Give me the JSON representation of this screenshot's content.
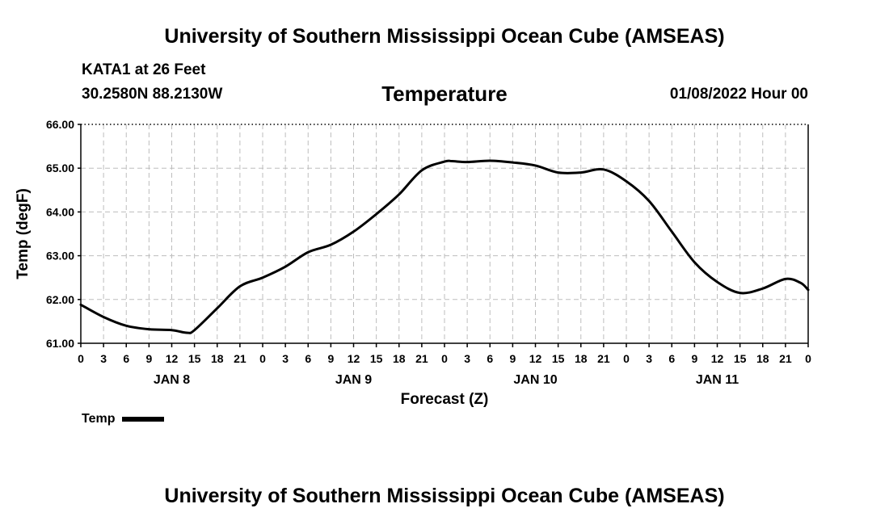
{
  "header": {
    "title": "University of Southern Mississippi Ocean Cube (AMSEAS)",
    "station": "KATA1 at 26 Feet",
    "coords": "30.2580N  88.2130W",
    "datetime": "01/08/2022 Hour 00"
  },
  "footer": {
    "title": "University of Southern Mississippi Ocean Cube (AMSEAS)"
  },
  "legend": {
    "label": "Temp"
  },
  "chart_data": {
    "type": "line",
    "title": "Temperature",
    "xlabel": "Forecast (Z)",
    "ylabel": "Temp (degF)",
    "ylim": [
      61.0,
      66.0
    ],
    "xlim_hours": [
      0,
      96
    ],
    "yticks": [
      "61.00",
      "62.00",
      "63.00",
      "64.00",
      "65.00",
      "66.00"
    ],
    "xtick_labels": [
      "0",
      "3",
      "6",
      "9",
      "12",
      "15",
      "18",
      "21",
      "0",
      "3",
      "6",
      "9",
      "12",
      "15",
      "18",
      "21",
      "0",
      "3",
      "6",
      "9",
      "12",
      "15",
      "18",
      "21",
      "0",
      "3",
      "6",
      "9",
      "12",
      "15",
      "18",
      "21",
      "0"
    ],
    "day_labels": [
      "JAN 8",
      "JAN 9",
      "JAN 10",
      "JAN 11"
    ],
    "grid": true,
    "series": [
      {
        "name": "Temp",
        "color": "#000000",
        "x_hours": [
          0,
          3,
          6,
          9,
          12,
          14,
          15,
          18,
          21,
          24,
          27,
          30,
          33,
          36,
          39,
          42,
          45,
          48,
          49,
          51,
          54,
          57,
          60,
          63,
          66,
          69,
          72,
          75,
          78,
          81,
          84,
          87,
          90,
          93,
          95,
          96
        ],
        "values": [
          61.88,
          61.6,
          61.4,
          61.32,
          61.3,
          61.24,
          61.3,
          61.8,
          62.3,
          62.5,
          62.75,
          63.08,
          63.25,
          63.55,
          63.95,
          64.4,
          64.95,
          65.15,
          65.16,
          65.14,
          65.17,
          65.13,
          65.06,
          64.9,
          64.9,
          64.97,
          64.7,
          64.25,
          63.55,
          62.85,
          62.4,
          62.15,
          62.25,
          62.47,
          62.38,
          62.22
        ]
      }
    ]
  }
}
